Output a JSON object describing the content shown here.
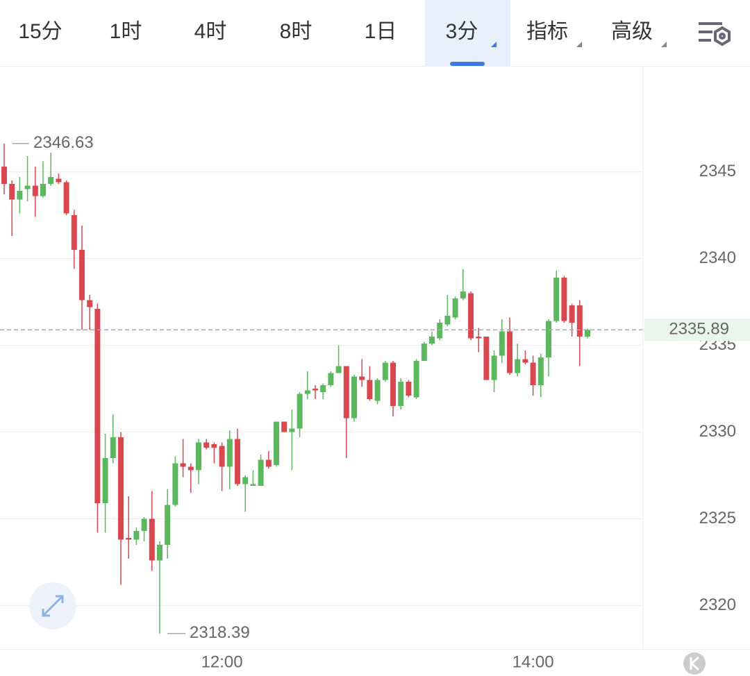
{
  "tabs": [
    "15分",
    "1时",
    "4时",
    "8时",
    "1日",
    "3分",
    "指标",
    "高级"
  ],
  "active_tab": 5,
  "chart_data": {
    "type": "candlestick",
    "categories": [
      null,
      null,
      null,
      null,
      null,
      null,
      null,
      null,
      null,
      null,
      null,
      null,
      null,
      null,
      null,
      null,
      null,
      null,
      null,
      null,
      null,
      null,
      null,
      null,
      null,
      null,
      null,
      null,
      "12:00",
      null,
      null,
      null,
      null,
      null,
      null,
      null,
      null,
      null,
      null,
      null,
      null,
      null,
      null,
      null,
      null,
      null,
      null,
      null,
      null,
      null,
      null,
      null,
      null,
      null,
      null,
      null,
      null,
      null,
      null,
      null,
      null,
      null,
      null,
      null,
      null,
      null,
      null,
      null,
      "14:00",
      null,
      null,
      null,
      null,
      null,
      null,
      null
    ],
    "open": [
      2345.3,
      2344.3,
      2343.4,
      2344.0,
      2344.2,
      2343.6,
      2344.3,
      2344.6,
      2344.4,
      2342.5,
      2340.5,
      2337.6,
      2337.1,
      2325.9,
      2328.5,
      2329.7,
      2323.9,
      2323.8,
      2324.3,
      2325.0,
      2322.6,
      2323.5,
      2325.8,
      2328.2,
      2328.0,
      2327.8,
      2329.4,
      2329.3,
      2329.2,
      2328.0,
      2329.6,
      2327.0,
      2326.9,
      2326.9,
      2328.4,
      2328.1,
      2330.6,
      2330.0,
      2330.2,
      2332.2,
      2332.5,
      2332.3,
      2332.7,
      2333.4,
      2333.8,
      2330.8,
      2333.2,
      2333.0,
      2331.8,
      2333.0,
      2334.0,
      2331.5,
      2332.9,
      2332.0,
      2334.1,
      2335.1,
      2335.4,
      2336.2,
      2336.6,
      2337.7,
      2338.0,
      2335.5,
      2335.5,
      2333.0,
      2334.4,
      2335.8,
      2333.4,
      2334.2,
      2334.0,
      2332.7,
      2334.3,
      2336.4,
      2338.9,
      2337.3,
      2337.3,
      2335.5
    ],
    "high": [
      2346.63,
      2344.5,
      2344.7,
      2345.9,
      2345.3,
      2345.6,
      2346.1,
      2344.9,
      2344.5,
      2342.8,
      2341.9,
      2337.9,
      2337.4,
      2329.9,
      2331.0,
      2330.0,
      2326.3,
      2324.5,
      2325.1,
      2326.6,
      2323.7,
      2326.7,
      2328.6,
      2329.6,
      2328.2,
      2329.6,
      2329.6,
      2329.4,
      2329.4,
      2330.1,
      2330.2,
      2327.5,
      2327.8,
      2328.7,
      2328.9,
      2330.6,
      2330.6,
      2331.3,
      2332.3,
      2333.5,
      2332.7,
      2332.8,
      2333.5,
      2335.0,
      2333.8,
      2333.3,
      2334.2,
      2333.8,
      2333.1,
      2334.1,
      2334.1,
      2333.1,
      2333.0,
      2334.2,
      2335.2,
      2335.8,
      2336.5,
      2337.9,
      2337.8,
      2339.4,
      2338.1,
      2336.0,
      2335.5,
      2334.7,
      2336.5,
      2336.6,
      2335.1,
      2334.7,
      2334.4,
      2334.5,
      2336.5,
      2339.3,
      2339.0,
      2337.4,
      2337.6,
      2335.96
    ],
    "low": [
      2343.7,
      2341.3,
      2342.6,
      2343.3,
      2342.4,
      2343.5,
      2344.2,
      2344.3,
      2342.5,
      2339.4,
      2335.9,
      2335.9,
      2324.2,
      2324.2,
      2328.2,
      2321.2,
      2322.7,
      2323.5,
      2323.7,
      2322.0,
      2318.39,
      2322.7,
      2325.7,
      2327.4,
      2326.5,
      2327.0,
      2329.0,
      2328.2,
      2326.6,
      2326.7,
      2326.9,
      2325.4,
      2326.9,
      2326.9,
      2327.9,
      2328.0,
      2330.0,
      2327.8,
      2329.7,
      2331.9,
      2331.9,
      2331.9,
      2332.6,
      2333.4,
      2328.5,
      2330.6,
      2332.6,
      2331.8,
      2331.6,
      2332.9,
      2330.9,
      2331.3,
      2332.0,
      2331.9,
      2334.1,
      2335.0,
      2335.3,
      2336.1,
      2336.5,
      2337.6,
      2335.3,
      2334.6,
      2333.0,
      2332.3,
      2334.0,
      2333.3,
      2333.2,
      2333.9,
      2332.1,
      2332.0,
      2333.2,
      2336.3,
      2336.3,
      2335.5,
      2333.8,
      2335.4
    ],
    "close": [
      2344.3,
      2343.4,
      2343.9,
      2344.2,
      2343.6,
      2344.3,
      2344.7,
      2344.4,
      2342.6,
      2340.5,
      2337.6,
      2337.2,
      2325.9,
      2328.5,
      2329.7,
      2323.8,
      2323.8,
      2324.3,
      2325.0,
      2322.6,
      2323.5,
      2325.8,
      2328.2,
      2328.0,
      2327.8,
      2329.4,
      2329.1,
      2329.1,
      2328.0,
      2329.6,
      2327.0,
      2327.4,
      2327.0,
      2328.4,
      2328.0,
      2330.6,
      2330.0,
      2330.2,
      2332.2,
      2332.4,
      2332.4,
      2332.7,
      2333.4,
      2333.8,
      2330.8,
      2333.2,
      2333.0,
      2331.9,
      2333.0,
      2334.0,
      2331.5,
      2332.9,
      2332.1,
      2334.1,
      2335.1,
      2335.5,
      2336.3,
      2336.7,
      2337.7,
      2338.1,
      2335.4,
      2335.4,
      2333.0,
      2334.4,
      2335.8,
      2333.4,
      2334.2,
      2334.0,
      2332.7,
      2334.3,
      2336.4,
      2338.9,
      2336.4,
      2336.3,
      2335.5,
      2335.89
    ],
    "up_color": "#5cb85f",
    "down_color": "#d9474f",
    "ylim": [
      2317.5,
      2351.1
    ],
    "yticks": [
      2320,
      2325,
      2330,
      2335,
      2340,
      2345
    ],
    "grid": true,
    "high_marker": 2346.63,
    "low_marker": 2318.39,
    "last_price": 2335.89
  }
}
